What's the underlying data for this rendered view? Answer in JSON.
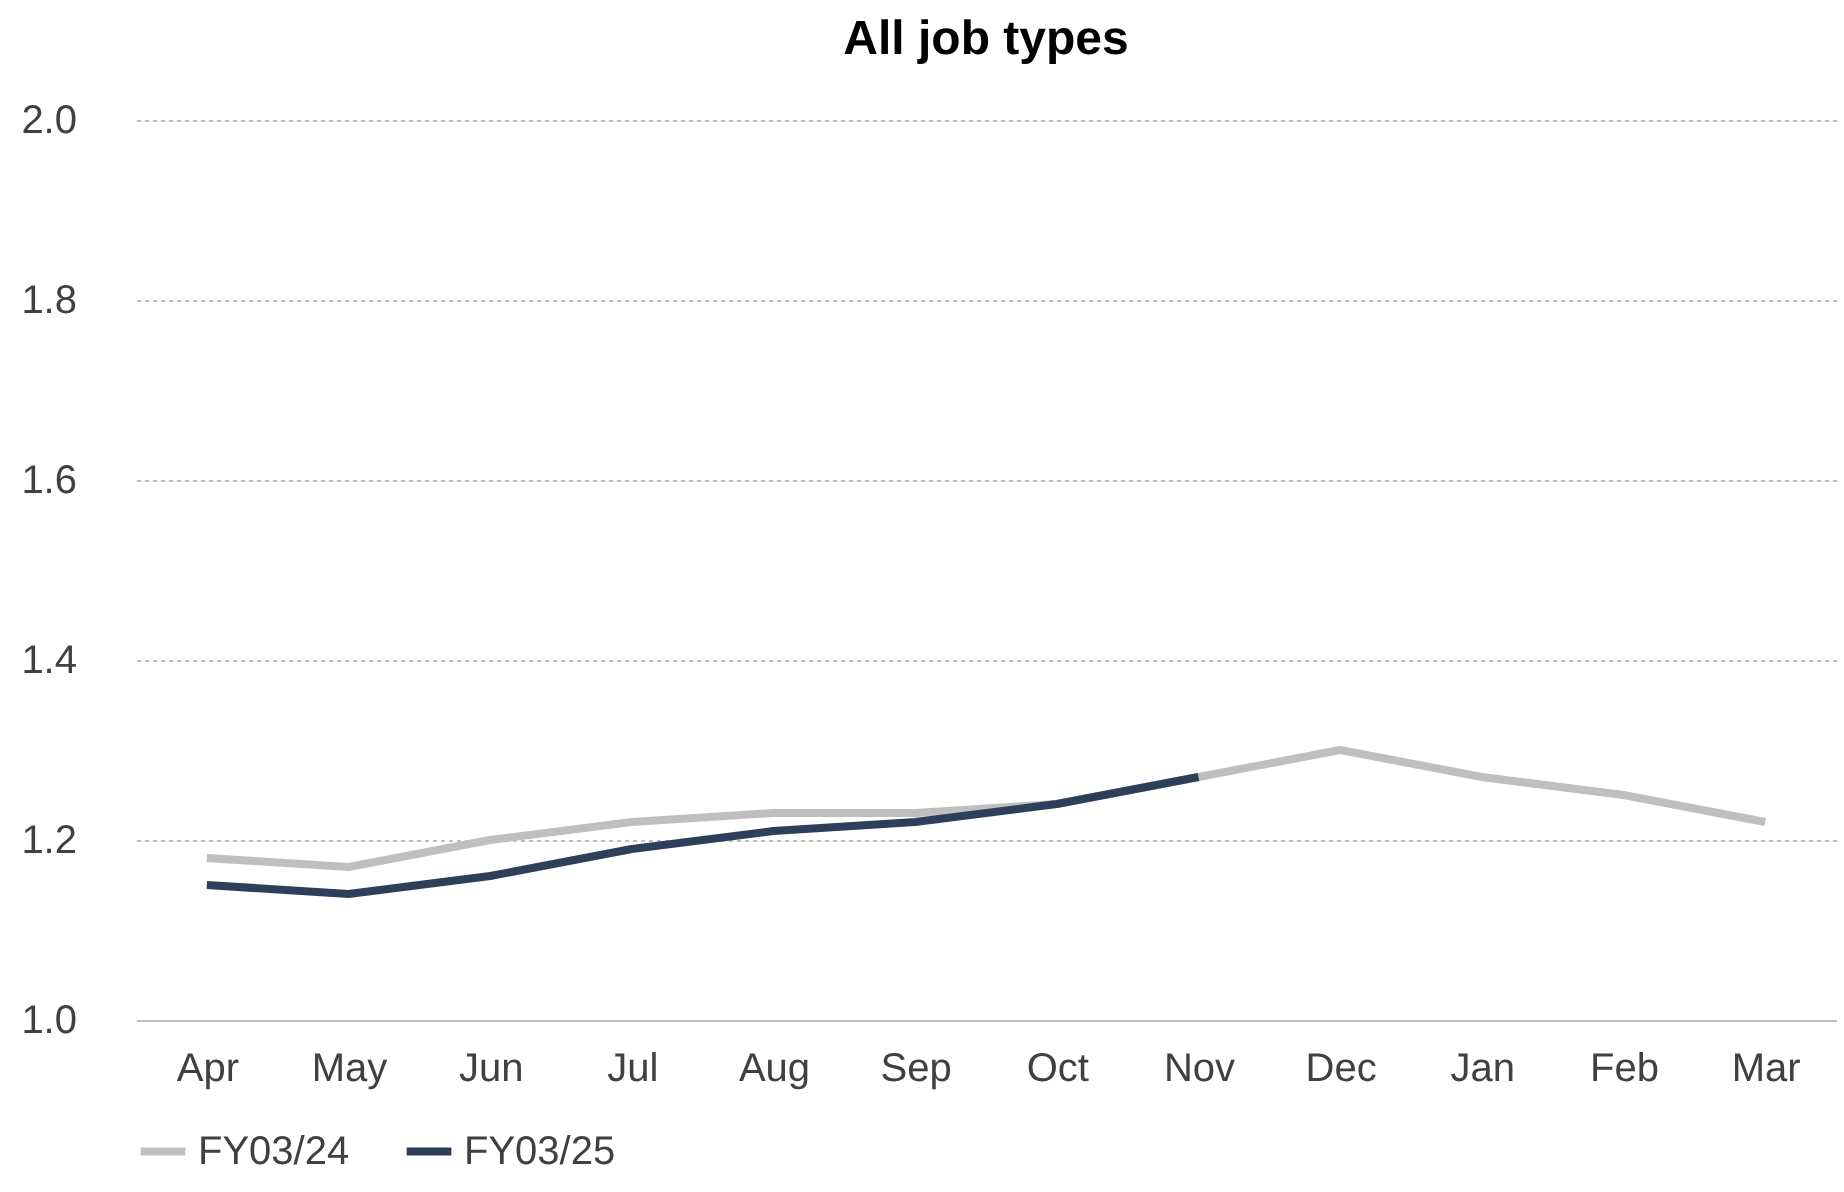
{
  "chart_data": {
    "type": "line",
    "title": "All job types",
    "categories": [
      "Apr",
      "May",
      "Jun",
      "Jul",
      "Aug",
      "Sep",
      "Oct",
      "Nov",
      "Dec",
      "Jan",
      "Feb",
      "Mar"
    ],
    "series": [
      {
        "name": "FY03/24",
        "color": "#bfbfbf",
        "values": [
          1.18,
          1.17,
          1.2,
          1.22,
          1.23,
          1.23,
          1.24,
          1.27,
          1.3,
          1.27,
          1.25,
          1.22
        ]
      },
      {
        "name": "FY03/25",
        "color": "#2e3f5c",
        "values": [
          1.15,
          1.14,
          1.16,
          1.19,
          1.21,
          1.22,
          1.24,
          1.27,
          null,
          null,
          null,
          null
        ]
      }
    ],
    "ylim": [
      1.0,
      2.0
    ],
    "yticks": [
      {
        "value": 1.0,
        "label": "1.0"
      },
      1.2,
      1.4,
      1.6,
      1.8,
      {
        "value": 2.0,
        "label": "2.0"
      }
    ],
    "grid": "y",
    "legend": "bottom",
    "marker": "none",
    "line_style": "solid"
  }
}
